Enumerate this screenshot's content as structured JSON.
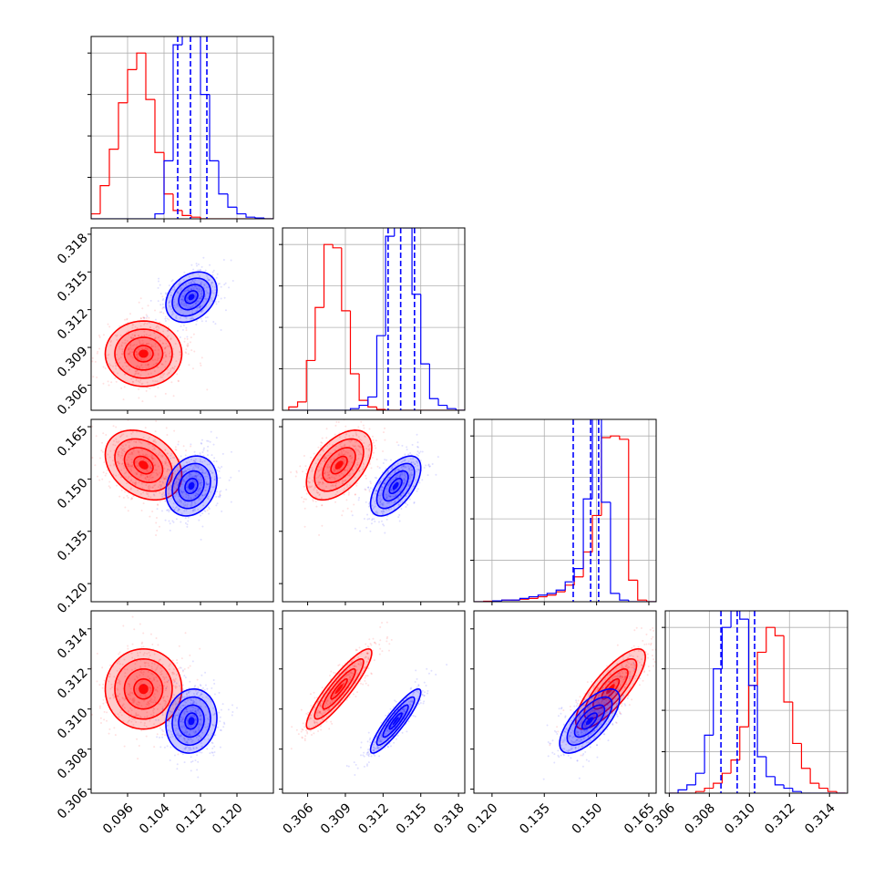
{
  "chart_data": {
    "type": "corner",
    "params": [
      {
        "lim": [
          0.088,
          0.128
        ],
        "ticks": [
          0.096,
          0.104,
          0.112,
          {
            "value": 0.12,
            "label": "0.120"
          }
        ]
      },
      {
        "lim": [
          0.304,
          0.3185
        ],
        "ticks": [
          0.306,
          0.309,
          0.312,
          0.315,
          0.318
        ]
      },
      {
        "lim": [
          0.1148,
          0.1671
        ],
        "ticks": [
          {
            "value": 0.12,
            "label": "0.120"
          },
          0.135,
          {
            "value": 0.15,
            "label": "0.150"
          },
          0.165
        ]
      },
      {
        "lim": [
          0.3058,
          0.3149
        ],
        "ticks": [
          0.306,
          0.308,
          {
            "value": 0.31,
            "label": "0.310"
          },
          0.312,
          0.314
        ]
      }
    ],
    "hist_ylim": [
      0,
      1.1
    ],
    "hist_yticks": [
      0.25,
      0.5,
      0.75,
      1.0
    ],
    "diag_grid": true,
    "contour_sigmas": [
      0.5,
      1,
      1.5,
      2
    ],
    "hist_bins": [
      [
        0.088,
        0.09,
        0.092,
        0.094,
        0.096,
        0.098,
        0.1,
        0.102,
        0.104,
        0.106,
        0.108,
        0.11,
        0.112,
        0.114,
        0.116,
        0.118,
        0.12,
        0.122,
        0.124,
        0.126,
        0.128
      ],
      [
        0.3045,
        0.3052,
        0.3059,
        0.3066,
        0.3073,
        0.308,
        0.3087,
        0.3094,
        0.3101,
        0.3108,
        0.3115,
        0.3122,
        0.3129,
        0.3136,
        0.3143,
        0.315,
        0.3157,
        0.3164,
        0.3171,
        0.3178,
        0.3185
      ],
      [
        0.115,
        0.1176,
        0.1202,
        0.1228,
        0.1254,
        0.128,
        0.1306,
        0.1332,
        0.1358,
        0.1384,
        0.141,
        0.1436,
        0.1462,
        0.1488,
        0.1514,
        0.154,
        0.1566,
        0.1592,
        0.1618,
        0.1644,
        0.167
      ],
      [
        0.306,
        0.30644,
        0.30688,
        0.30732,
        0.30776,
        0.3082,
        0.30864,
        0.30908,
        0.30952,
        0.30996,
        0.3104,
        0.31084,
        0.31128,
        0.31172,
        0.31216,
        0.3126,
        0.31304,
        0.31348,
        0.31392,
        0.31436,
        0.3148
      ]
    ],
    "series": [
      {
        "color": "#ff0000",
        "mean": [
          0.0995,
          0.3085,
          0.154,
          0.311
        ],
        "sd": [
          0.0042,
          0.0013,
          0.005,
          0.001
        ],
        "corr": [
          [
            0.0
          ],
          [
            -0.3,
            0.5
          ],
          [
            0.0,
            0.9,
            0.8
          ]
        ],
        "hist": [
          [
            0.03,
            0.2,
            0.42,
            0.7,
            0.9,
            1.0,
            0.72,
            0.4,
            0.15,
            0.05,
            0.02,
            0.01,
            0,
            0,
            0,
            0,
            0,
            0,
            0,
            0
          ],
          [
            0.02,
            0.05,
            0.3,
            0.62,
            1.0,
            0.98,
            0.6,
            0.22,
            0.06,
            0.02,
            0.005,
            0,
            0,
            0,
            0,
            0,
            0,
            0,
            0,
            0
          ],
          [
            0,
            0.003,
            0.005,
            0.01,
            0.01,
            0.015,
            0.02,
            0.03,
            0.04,
            0.06,
            0.1,
            0.15,
            0.3,
            0.52,
            0.99,
            1.0,
            0.98,
            0.13,
            0.01,
            0
          ],
          [
            0,
            0,
            0,
            0.01,
            0.03,
            0.06,
            0.12,
            0.2,
            0.4,
            0.65,
            0.85,
            1.0,
            0.95,
            0.55,
            0.3,
            0.15,
            0.06,
            0.03,
            0.01,
            0
          ]
        ]
      },
      {
        "color": "#0000ff",
        "mean": [
          0.11,
          0.313,
          0.148,
          0.3094
        ],
        "sd": [
          0.0028,
          0.001,
          0.0043,
          0.0008
        ],
        "corr": [
          [
            0.3
          ],
          [
            0.2,
            0.6
          ],
          [
            0.1,
            0.9,
            0.7
          ]
        ],
        "hist": [
          [
            0,
            0,
            0,
            0,
            0,
            0,
            0,
            0.03,
            0.35,
            1.05,
            1.15,
            1.1,
            0.75,
            0.35,
            0.15,
            0.07,
            0.03,
            0.01,
            0.005,
            0
          ],
          [
            0,
            0,
            0,
            0,
            0,
            0,
            0,
            0.01,
            0.03,
            0.08,
            0.45,
            1.05,
            1.15,
            1.1,
            0.7,
            0.28,
            0.07,
            0.03,
            0.01,
            0
          ],
          [
            0,
            0,
            0.005,
            0.01,
            0.01,
            0.02,
            0.03,
            0.04,
            0.05,
            0.07,
            0.12,
            0.2,
            0.62,
            1.15,
            0.6,
            0.05,
            0.01,
            0,
            0,
            0
          ],
          [
            0,
            0.02,
            0.05,
            0.12,
            0.35,
            0.75,
            1.0,
            1.1,
            1.05,
            0.65,
            0.22,
            0.1,
            0.05,
            0.03,
            0.01,
            0,
            0,
            0,
            0,
            0
          ]
        ],
        "quantiles": [
          [
            0.107,
            0.1098,
            0.1134
          ],
          [
            0.3124,
            0.3134,
            0.3145
          ],
          [
            0.1433,
            0.1483,
            0.1506
          ],
          [
            0.30858,
            0.30939,
            0.31026
          ]
        ]
      }
    ]
  }
}
